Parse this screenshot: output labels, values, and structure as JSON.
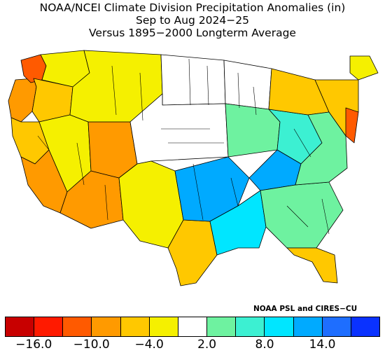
{
  "title": {
    "line1": "NOAA/NCEI Climate Division Precipitation Anomalies (in)",
    "line2": "Sep to Aug 2024−25",
    "line3": "Versus 1895−2000 Longterm Average"
  },
  "credit": "NOAA PSL and CIRES−CU",
  "colorbar": {
    "colors": [
      "#c80000",
      "#ff1a00",
      "#ff5a00",
      "#ff9a00",
      "#ffc800",
      "#f5f000",
      "#ffffff",
      "#6ef2a0",
      "#3cf0d2",
      "#00e6ff",
      "#00aaff",
      "#1e6eff",
      "#0a32ff"
    ],
    "tick_labels": [
      "−16.0",
      "−10.0",
      "−4.0",
      "2.0",
      "8.0",
      "14.0"
    ]
  },
  "regions": [
    {
      "name": "pacific-northwest-coast",
      "color": "#ff9a00"
    },
    {
      "name": "puget-sound",
      "color": "#ff5a00"
    },
    {
      "name": "inland-northwest",
      "color": "#f5f000"
    },
    {
      "name": "oregon-interior",
      "color": "#ffc800"
    },
    {
      "name": "northern-california",
      "color": "#ffc800"
    },
    {
      "name": "southern-california",
      "color": "#ff9a00"
    },
    {
      "name": "nevada-great-basin",
      "color": "#f5f000"
    },
    {
      "name": "arizona-desert",
      "color": "#ff9a00"
    },
    {
      "name": "four-corners",
      "color": "#ff9a00"
    },
    {
      "name": "northern-rockies",
      "color": "#f5f000"
    },
    {
      "name": "northern-plains",
      "color": "#ffffff"
    },
    {
      "name": "central-plains",
      "color": "#ffffff"
    },
    {
      "name": "southern-plains",
      "color": "#f5f000"
    },
    {
      "name": "texas-gulf",
      "color": "#ffc800"
    },
    {
      "name": "upper-midwest",
      "color": "#ffffff"
    },
    {
      "name": "iowa-illinois",
      "color": "#6ef2a0"
    },
    {
      "name": "ohio-valley",
      "color": "#3cf0d2"
    },
    {
      "name": "tennessee-kentucky",
      "color": "#00aaff"
    },
    {
      "name": "arkansas-delta",
      "color": "#00aaff"
    },
    {
      "name": "lower-mississippi",
      "color": "#00e6ff"
    },
    {
      "name": "southeast",
      "color": "#6ef2a0"
    },
    {
      "name": "florida",
      "color": "#ffc800"
    },
    {
      "name": "great-lakes",
      "color": "#ffc800"
    },
    {
      "name": "appalachians",
      "color": "#6ef2a0"
    },
    {
      "name": "new-england",
      "color": "#ffc800"
    },
    {
      "name": "mid-atlantic-coast",
      "color": "#ff5a00"
    },
    {
      "name": "northern-new-england",
      "color": "#f5f000"
    }
  ]
}
